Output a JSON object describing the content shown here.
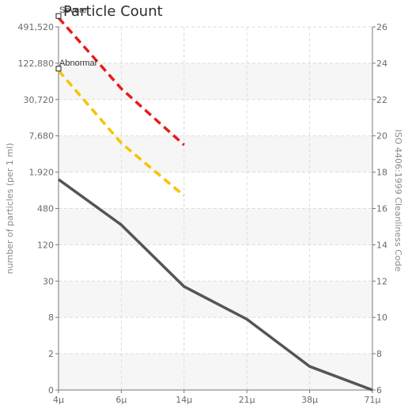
{
  "chart_data": {
    "type": "line",
    "title": "Particle Count",
    "x": [
      4,
      6,
      14,
      21,
      38,
      71
    ],
    "x_tick_labels": [
      "4μ",
      "6μ",
      "14μ",
      "21μ",
      "38μ",
      "71μ"
    ],
    "y_left": {
      "label": "number of particles (per 1 ml)",
      "scale": "log2",
      "range": [
        0,
        983040
      ],
      "ticks": [
        0,
        2,
        8,
        30,
        120,
        480,
        1920,
        7680,
        30720,
        122880,
        491520
      ],
      "tick_labels": [
        "0",
        "2",
        "8",
        "30",
        "120",
        "480",
        "1,920",
        "7,680",
        "30,720",
        "122,880",
        "491,520"
      ]
    },
    "y_right": {
      "label": "ISO 4406:1999 Cleanliness Code",
      "range": [
        6,
        26
      ],
      "ticks": [
        6,
        8,
        10,
        12,
        14,
        16,
        18,
        20,
        22,
        24,
        26
      ],
      "tick_labels": [
        "6",
        "8",
        "10",
        "12",
        "14",
        "16",
        "18",
        "20",
        "22",
        "24",
        "26"
      ]
    },
    "series": [
      {
        "color": "#e81c1c",
        "dash": true,
        "x": [
          4,
          6,
          14
        ],
        "code": [
          26.5,
          22.6,
          19.5
        ]
      },
      {
        "color": "#f5c400",
        "dash": true,
        "x": [
          4,
          6,
          14
        ],
        "code": [
          23.6,
          19.6,
          16.7
        ]
      },
      {
        "color": "#555555",
        "dash": false,
        "x": [
          4,
          6,
          14,
          21,
          38,
          71
        ],
        "code": [
          17.6,
          15.1,
          11.7,
          9.9,
          7.3,
          6.0
        ]
      }
    ],
    "annotations": [
      {
        "text": "Severe",
        "x": 4,
        "code": 26.6
      },
      {
        "text": "Abnormal",
        "x": 4,
        "code": 23.7
      }
    ],
    "grid": true,
    "legend": "none"
  },
  "colors": {
    "band": "#f6f6f6",
    "grid": "#dddddd",
    "axis": "#777777"
  }
}
